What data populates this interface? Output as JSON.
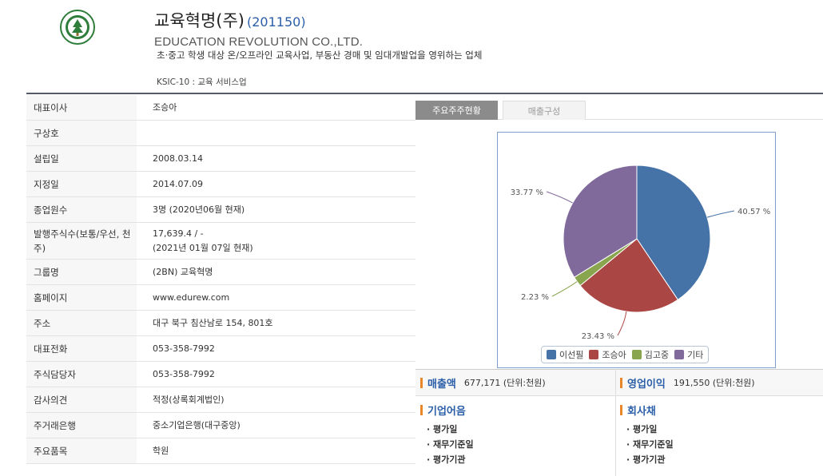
{
  "company": {
    "name": "교육혁명(주)",
    "code": "(201150)",
    "english_name": "EDUCATION REVOLUTION CO.,LTD.",
    "description": "초·중고 학생 대상 온/오프라인 교육사업, 부동산 경매 및 임대개발업을 영위하는 업체",
    "ksic": "KSIC-10 : 교육 서비스업"
  },
  "info": [
    {
      "label": "대표이사",
      "value": "조승아"
    },
    {
      "label": "구상호",
      "value": ""
    },
    {
      "label": "설립일",
      "value": "2008.03.14"
    },
    {
      "label": "지정일",
      "value": "2014.07.09"
    },
    {
      "label": "종업원수",
      "value": "3명 (2020년06월 현재)"
    },
    {
      "label": "발행주식수",
      "label2": "(보통/우선, 천주)",
      "value": "17,639.4 / -",
      "value2": "(2021년 01월 07일 현재)"
    },
    {
      "label": "그룹명",
      "value": "(2BN) 교육혁명"
    },
    {
      "label": "홈페이지",
      "value": "www.edurew.com"
    },
    {
      "label": "주소",
      "value": "대구 북구 침산남로 154, 801호"
    },
    {
      "label": "대표전화",
      "value": "053-358-7992"
    },
    {
      "label": "주식담당자",
      "value": "053-358-7992"
    },
    {
      "label": "감사의견",
      "value": "적정(상록회계법인)"
    },
    {
      "label": "주거래은행",
      "value": "중소기업은행(대구중앙)"
    },
    {
      "label": "주요품목",
      "value": "학원"
    }
  ],
  "tabs": {
    "active": "주요주주현황",
    "inactive": "매출구성"
  },
  "chart_data": {
    "type": "pie",
    "slices": [
      {
        "name": "이선필",
        "value": 40.57,
        "label": "40.57 %",
        "color": "#4572a7"
      },
      {
        "name": "조승아",
        "value": 23.43,
        "label": "23.43 %",
        "color": "#aa4643"
      },
      {
        "name": "김고중",
        "value": 2.23,
        "label": "2.23 %",
        "color": "#89a54e"
      },
      {
        "name": "기타",
        "value": 33.77,
        "label": "33.77 %",
        "color": "#80699b"
      }
    ],
    "legend_position": "bottom"
  },
  "finance": {
    "sales_label": "매출액",
    "sales_value": "677,171 (단위:천원)",
    "op_label": "영업이익",
    "op_value": "191,550 (단위:천원)"
  },
  "panels": {
    "cp": {
      "title": "기업어음",
      "items": [
        "평가일",
        "재무기준일",
        "평가기관"
      ]
    },
    "bond": {
      "title": "회사채",
      "items": [
        "평가일",
        "재무기준일",
        "평가기관"
      ]
    }
  },
  "colors": {
    "accent": "#2a5ea8",
    "marker": "#e8862a"
  }
}
